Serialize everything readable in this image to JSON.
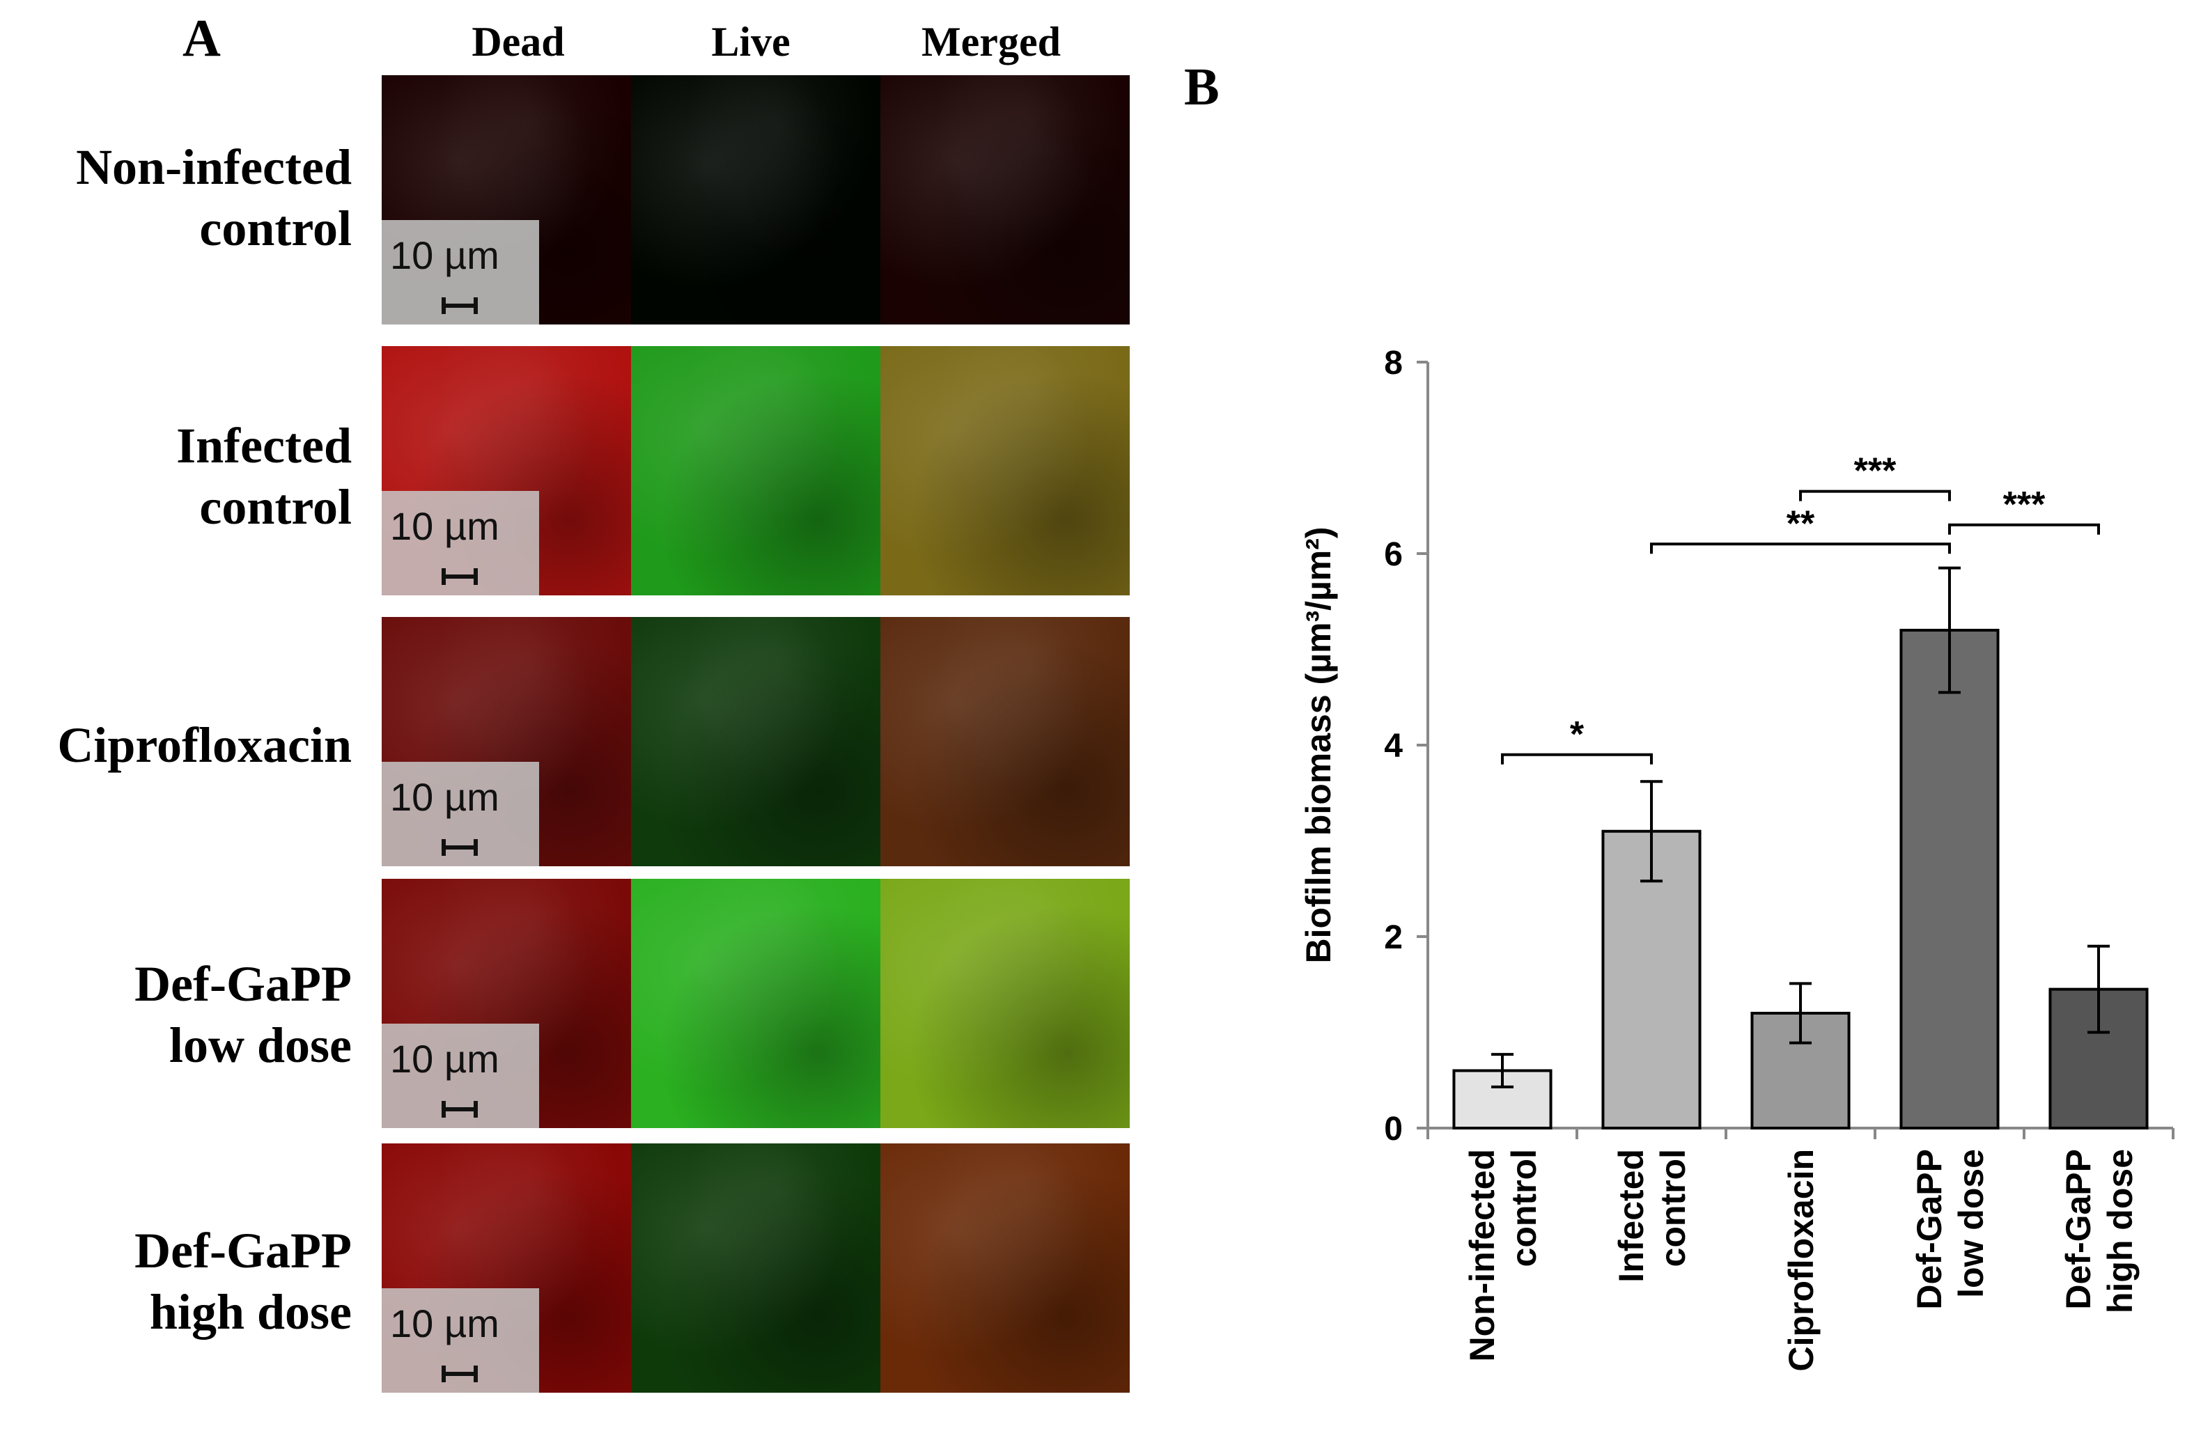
{
  "panel_a": {
    "letter": "A",
    "columns": [
      "Dead",
      "Live",
      "Merged"
    ],
    "scale_label": "10 µm",
    "rows": [
      {
        "label_lines": [
          "Non-infected",
          "control"
        ],
        "dead": "#1a0000",
        "live": "#000500",
        "merged": "#1a0202"
      },
      {
        "label_lines": [
          "Infected",
          "control"
        ],
        "dead": "#b01210",
        "live": "#1f9a1a",
        "merged": "#7a6a18"
      },
      {
        "label_lines": [
          "Ciprofloxacin"
        ],
        "dead": "#6a0c0a",
        "live": "#0f3a0c",
        "merged": "#5a2a0e"
      },
      {
        "label_lines": [
          "Def-GaPP",
          "low dose"
        ],
        "dead": "#7a0a08",
        "live": "#2ab020",
        "merged": "#7aa818"
      },
      {
        "label_lines": [
          "Def-GaPP",
          "high dose"
        ],
        "dead": "#8a0806",
        "live": "#0e3a0a",
        "merged": "#6a2a08"
      }
    ]
  },
  "panel_b": {
    "letter": "B"
  },
  "chart_data": {
    "type": "bar",
    "categories": [
      [
        "Non-infected",
        "control"
      ],
      [
        "Infected",
        "control"
      ],
      [
        "Ciprofloxacin"
      ],
      [
        "Def-GaPP",
        "low dose"
      ],
      [
        "Def-GaPP",
        "high dose"
      ]
    ],
    "values": [
      0.6,
      3.1,
      1.2,
      5.2,
      1.45
    ],
    "errors": [
      0.17,
      0.52,
      0.31,
      0.65,
      0.45
    ],
    "bar_colors": [
      "#e3e3e3",
      "#b5b5b5",
      "#999999",
      "#6b6b6b",
      "#555555"
    ],
    "ylabel": "Biofilm biomass (µm³/µm²)",
    "ylim": [
      0,
      8
    ],
    "yticks": [
      0,
      2,
      4,
      6,
      8
    ],
    "grid": false,
    "significance": [
      {
        "from": 0,
        "to": 1,
        "y": 3.9,
        "label": "*"
      },
      {
        "from": 1,
        "to": 3,
        "y": 6.1,
        "label": "**"
      },
      {
        "from": 2,
        "to": 3,
        "y": 6.65,
        "label": "***"
      },
      {
        "from": 3,
        "to": 4,
        "y": 6.3,
        "label": "***"
      }
    ]
  }
}
